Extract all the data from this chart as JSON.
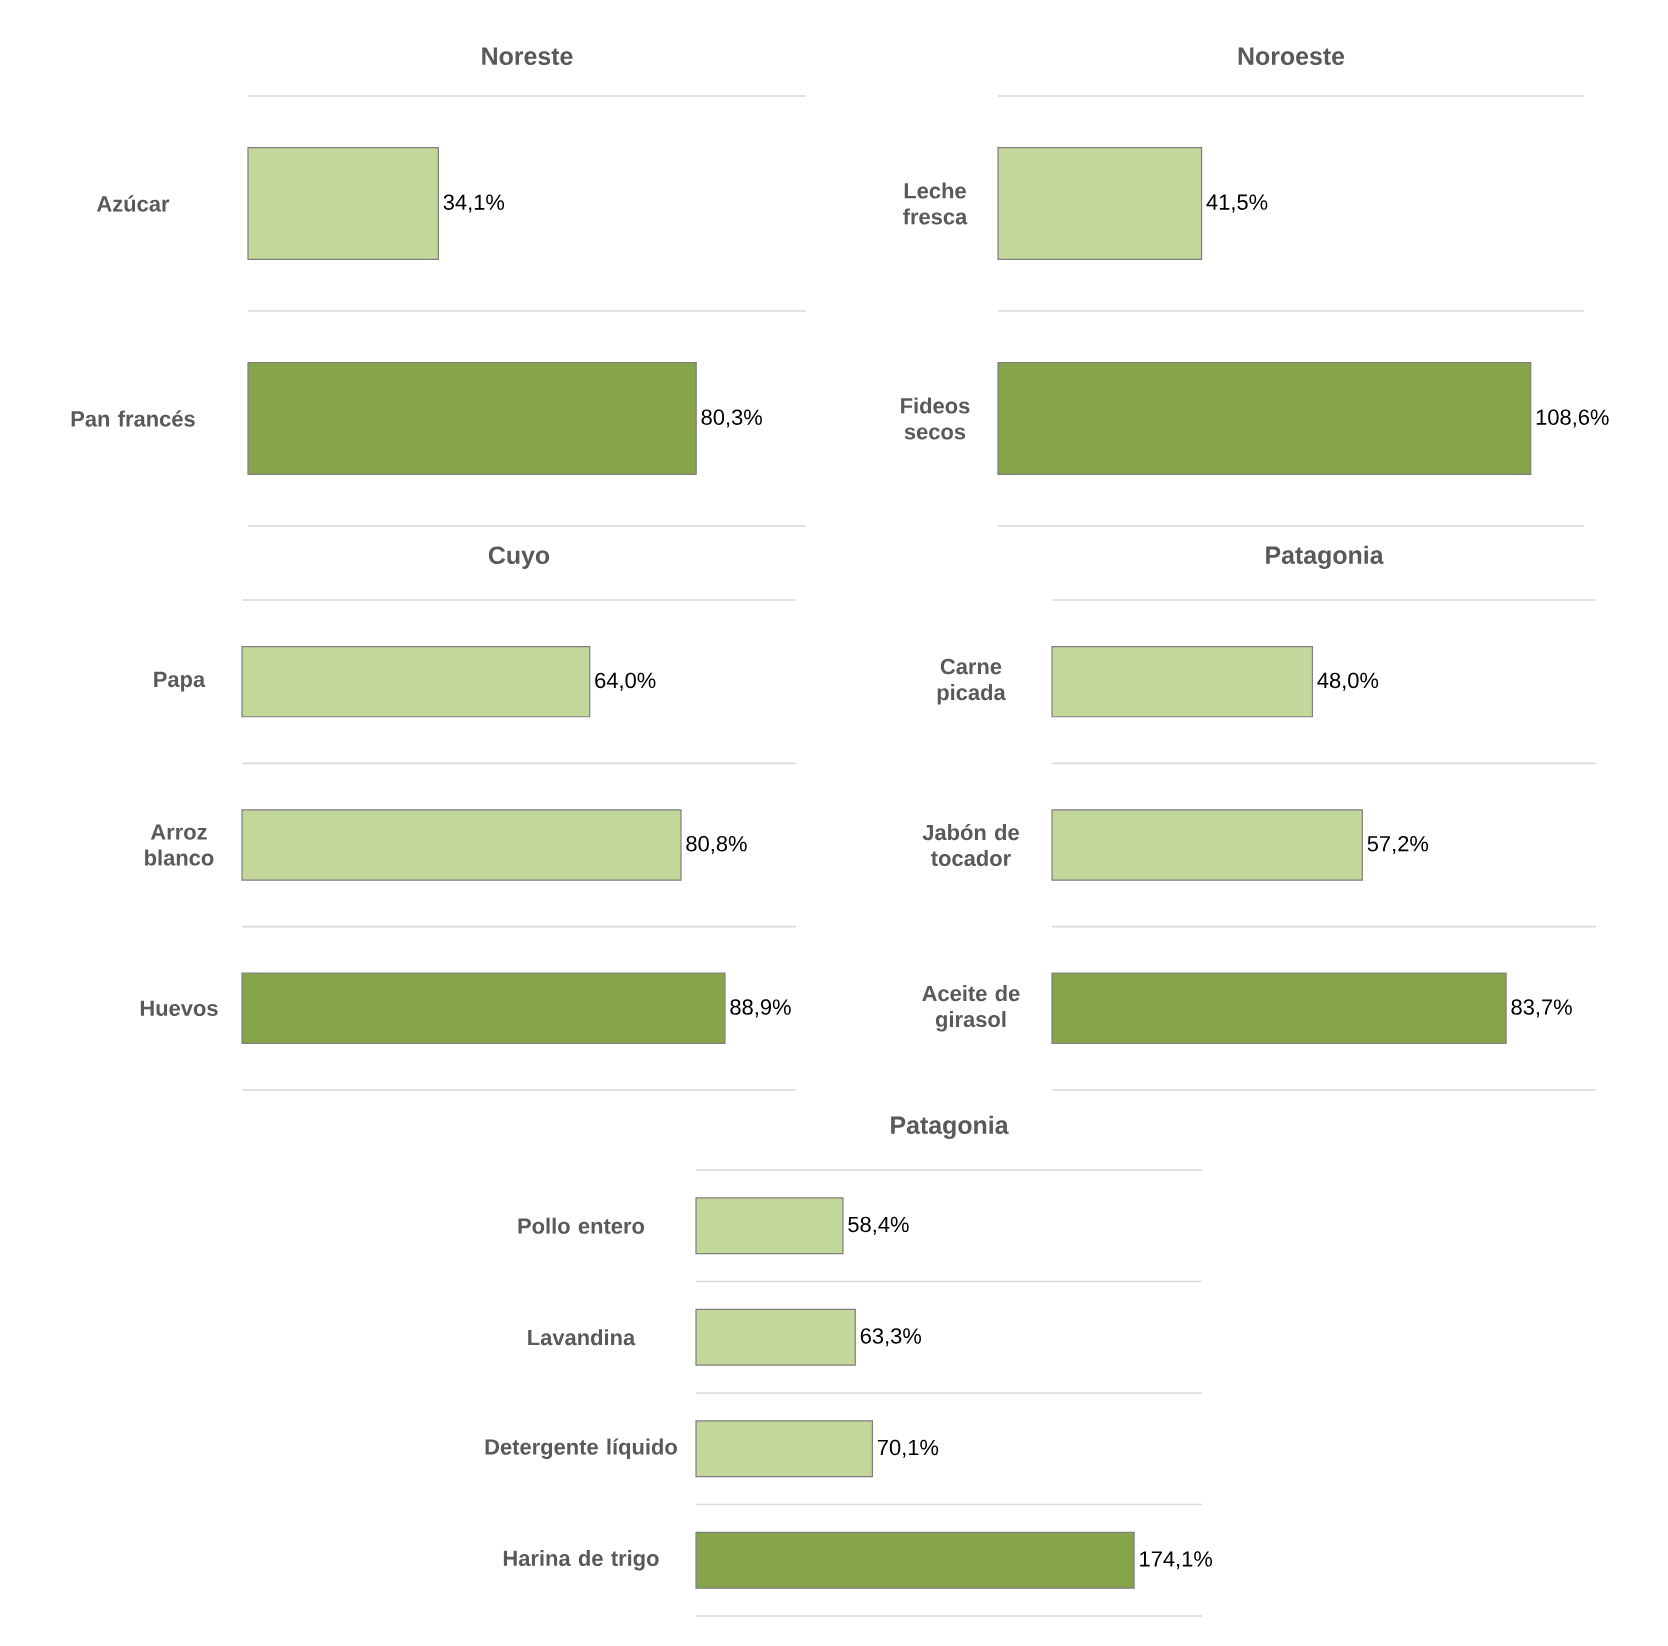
{
  "chart_data": [
    {
      "type": "bar",
      "orientation": "horizontal",
      "title": "Noreste",
      "categories": [
        "Azúcar",
        "Pan francés"
      ],
      "values": [
        34.1,
        80.3
      ],
      "value_labels": [
        "34,1%",
        "80,3%"
      ],
      "colors": [
        "#c4d79b",
        "#86a44a"
      ],
      "grid": "y"
    },
    {
      "type": "bar",
      "orientation": "horizontal",
      "title": "Noroeste",
      "categories": [
        "Leche fresca",
        "Fideos secos"
      ],
      "values": [
        41.5,
        108.6
      ],
      "value_labels": [
        "41,5%",
        "108,6%"
      ],
      "colors": [
        "#c4d79b",
        "#86a44a"
      ],
      "grid": "y"
    },
    {
      "type": "bar",
      "orientation": "horizontal",
      "title": "Cuyo",
      "categories": [
        "Papa",
        "Arroz blanco",
        "Huevos"
      ],
      "values": [
        64.0,
        80.8,
        88.9
      ],
      "value_labels": [
        "64,0%",
        "80,8%",
        "88,9%"
      ],
      "colors": [
        "#c4d79b",
        "#c4d79b",
        "#86a44a"
      ],
      "grid": "y"
    },
    {
      "type": "bar",
      "orientation": "horizontal",
      "title": "Patagonia",
      "categories": [
        "Carne picada",
        "Jabón de tocador",
        "Aceite de girasol"
      ],
      "values": [
        48.0,
        57.2,
        83.7
      ],
      "value_labels": [
        "48,0%",
        "57,2%",
        "83,7%"
      ],
      "colors": [
        "#c4d79b",
        "#c4d79b",
        "#86a44a"
      ],
      "grid": "y"
    },
    {
      "type": "bar",
      "orientation": "horizontal",
      "title": "Patagonia",
      "categories": [
        "Pollo entero",
        "Lavandina",
        "Detergente líquido",
        "Harina de trigo"
      ],
      "values": [
        58.4,
        63.3,
        70.1,
        174.1
      ],
      "value_labels": [
        "58,4%",
        "63,3%",
        "70,1%",
        "174,1%"
      ],
      "colors": [
        "#c4d79b",
        "#c4d79b",
        "#c4d79b",
        "#86a44a"
      ],
      "grid": "y"
    }
  ]
}
